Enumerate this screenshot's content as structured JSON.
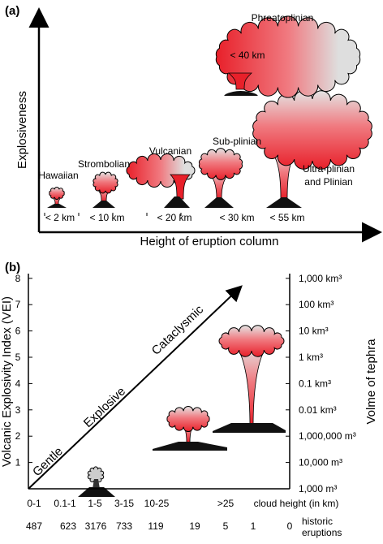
{
  "panel_a": {
    "label": "(a)",
    "y_axis": "Explosiveness",
    "x_axis": "Height of eruption column",
    "eruptions": [
      {
        "name": [
          "Hawaiian"
        ],
        "height": "< 2 km"
      },
      {
        "name": [
          "Strombolian"
        ],
        "height": "< 10 km"
      },
      {
        "name": [
          "Vulcanian"
        ],
        "height": "< 20 km"
      },
      {
        "name": [
          "Sub-plinian"
        ],
        "height": "< 30 km"
      },
      {
        "name": [
          "Ultra-plinian",
          "and Plinian"
        ],
        "height": "< 55 km"
      },
      {
        "name": [
          "Phreatoplinian"
        ],
        "height": "< 40 km"
      }
    ]
  },
  "panel_b": {
    "label": "(b)",
    "y_axis": "Volcanic Explosivity Index (VEI)",
    "y2_axis": "Volme of tephra",
    "vei_ticks": [
      "1",
      "2",
      "3",
      "4",
      "5",
      "6",
      "7",
      "8"
    ],
    "volume_ticks": [
      "1,000 m³",
      "10,000 m³",
      "1,000,000 m³",
      "0.01 km³",
      "0.1 km³",
      "1 km³",
      "10 km³",
      "100 km³",
      "1,000 km³"
    ],
    "arrow_labels": [
      "Gentle",
      "Explosive",
      "Cataclysmic"
    ],
    "cloud_heights": [
      "0-1",
      "0.1-1",
      "1-5",
      "3-15",
      "10-25",
      ">25",
      "cloud height (in km)"
    ],
    "historic_eruptions": [
      "487",
      "623",
      "3176",
      "733",
      "119",
      "19",
      "5",
      "1",
      "0"
    ],
    "historic_label": [
      "historic",
      "eruptions"
    ]
  }
}
